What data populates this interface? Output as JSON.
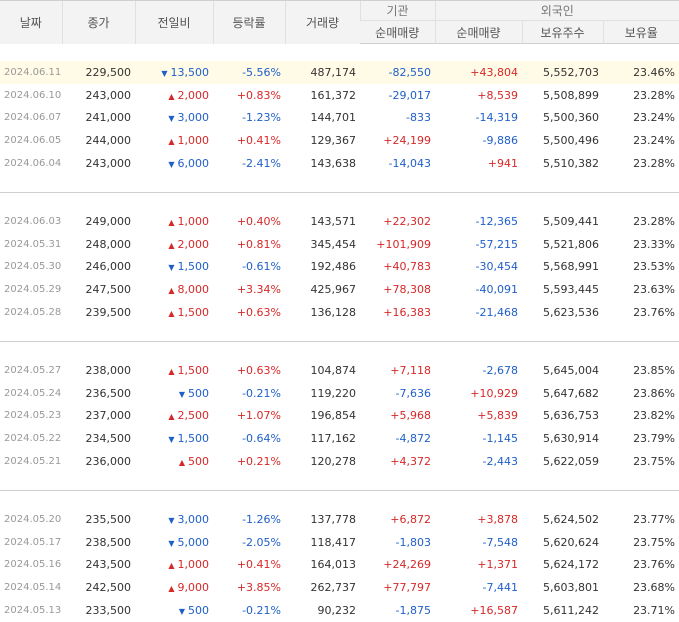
{
  "headers": {
    "date": "날짜",
    "close": "종가",
    "diff": "전일비",
    "rate": "등락률",
    "volume": "거래량",
    "institution": "기관",
    "foreign": "외국인",
    "inst_net": "순매매량",
    "foreign_net": "순매매량",
    "foreign_holdings": "보유주수",
    "foreign_ratio": "보유율"
  },
  "colors": {
    "up": "#d62828",
    "down": "#1f5fc9",
    "highlight": "#fffbe6"
  },
  "groups": [
    [
      {
        "date": "2024.06.11",
        "close": "229,500",
        "dir": "down",
        "diff": "13,500",
        "rate": "-5.56%",
        "volume": "487,174",
        "inst": "-82,550",
        "fnet": "+43,804",
        "fhold": "5,552,703",
        "fratio": "23.46%"
      },
      {
        "date": "2024.06.10",
        "close": "243,000",
        "dir": "up",
        "diff": "2,000",
        "rate": "+0.83%",
        "volume": "161,372",
        "inst": "-29,017",
        "fnet": "+8,539",
        "fhold": "5,508,899",
        "fratio": "23.28%"
      },
      {
        "date": "2024.06.07",
        "close": "241,000",
        "dir": "down",
        "diff": "3,000",
        "rate": "-1.23%",
        "volume": "144,701",
        "inst": "-833",
        "fnet": "-14,319",
        "fhold": "5,500,360",
        "fratio": "23.24%"
      },
      {
        "date": "2024.06.05",
        "close": "244,000",
        "dir": "up",
        "diff": "1,000",
        "rate": "+0.41%",
        "volume": "129,367",
        "inst": "+24,199",
        "fnet": "-9,886",
        "fhold": "5,500,496",
        "fratio": "23.24%"
      },
      {
        "date": "2024.06.04",
        "close": "243,000",
        "dir": "down",
        "diff": "6,000",
        "rate": "-2.41%",
        "volume": "143,638",
        "inst": "-14,043",
        "fnet": "+941",
        "fhold": "5,510,382",
        "fratio": "23.28%"
      }
    ],
    [
      {
        "date": "2024.06.03",
        "close": "249,000",
        "dir": "up",
        "diff": "1,000",
        "rate": "+0.40%",
        "volume": "143,571",
        "inst": "+22,302",
        "fnet": "-12,365",
        "fhold": "5,509,441",
        "fratio": "23.28%"
      },
      {
        "date": "2024.05.31",
        "close": "248,000",
        "dir": "up",
        "diff": "2,000",
        "rate": "+0.81%",
        "volume": "345,454",
        "inst": "+101,909",
        "fnet": "-57,215",
        "fhold": "5,521,806",
        "fratio": "23.33%"
      },
      {
        "date": "2024.05.30",
        "close": "246,000",
        "dir": "down",
        "diff": "1,500",
        "rate": "-0.61%",
        "volume": "192,486",
        "inst": "+40,783",
        "fnet": "-30,454",
        "fhold": "5,568,991",
        "fratio": "23.53%"
      },
      {
        "date": "2024.05.29",
        "close": "247,500",
        "dir": "up",
        "diff": "8,000",
        "rate": "+3.34%",
        "volume": "425,967",
        "inst": "+78,308",
        "fnet": "-40,091",
        "fhold": "5,593,445",
        "fratio": "23.63%"
      },
      {
        "date": "2024.05.28",
        "close": "239,500",
        "dir": "up",
        "diff": "1,500",
        "rate": "+0.63%",
        "volume": "136,128",
        "inst": "+16,383",
        "fnet": "-21,468",
        "fhold": "5,623,536",
        "fratio": "23.76%"
      }
    ],
    [
      {
        "date": "2024.05.27",
        "close": "238,000",
        "dir": "up",
        "diff": "1,500",
        "rate": "+0.63%",
        "volume": "104,874",
        "inst": "+7,118",
        "fnet": "-2,678",
        "fhold": "5,645,004",
        "fratio": "23.85%"
      },
      {
        "date": "2024.05.24",
        "close": "236,500",
        "dir": "down",
        "diff": "500",
        "rate": "-0.21%",
        "volume": "119,220",
        "inst": "-7,636",
        "fnet": "+10,929",
        "fhold": "5,647,682",
        "fratio": "23.86%"
      },
      {
        "date": "2024.05.23",
        "close": "237,000",
        "dir": "up",
        "diff": "2,500",
        "rate": "+1.07%",
        "volume": "196,854",
        "inst": "+5,968",
        "fnet": "+5,839",
        "fhold": "5,636,753",
        "fratio": "23.82%"
      },
      {
        "date": "2024.05.22",
        "close": "234,500",
        "dir": "down",
        "diff": "1,500",
        "rate": "-0.64%",
        "volume": "117,162",
        "inst": "-4,872",
        "fnet": "-1,145",
        "fhold": "5,630,914",
        "fratio": "23.79%"
      },
      {
        "date": "2024.05.21",
        "close": "236,000",
        "dir": "up",
        "diff": "500",
        "rate": "+0.21%",
        "volume": "120,278",
        "inst": "+4,372",
        "fnet": "-2,443",
        "fhold": "5,622,059",
        "fratio": "23.75%"
      }
    ],
    [
      {
        "date": "2024.05.20",
        "close": "235,500",
        "dir": "down",
        "diff": "3,000",
        "rate": "-1.26%",
        "volume": "137,778",
        "inst": "+6,872",
        "fnet": "+3,878",
        "fhold": "5,624,502",
        "fratio": "23.77%"
      },
      {
        "date": "2024.05.17",
        "close": "238,500",
        "dir": "down",
        "diff": "5,000",
        "rate": "-2.05%",
        "volume": "118,417",
        "inst": "-1,803",
        "fnet": "-7,548",
        "fhold": "5,620,624",
        "fratio": "23.75%"
      },
      {
        "date": "2024.05.16",
        "close": "243,500",
        "dir": "up",
        "diff": "1,000",
        "rate": "+0.41%",
        "volume": "164,013",
        "inst": "+24,269",
        "fnet": "+1,371",
        "fhold": "5,624,172",
        "fratio": "23.76%"
      },
      {
        "date": "2024.05.14",
        "close": "242,500",
        "dir": "up",
        "diff": "9,000",
        "rate": "+3.85%",
        "volume": "262,737",
        "inst": "+77,797",
        "fnet": "-7,441",
        "fhold": "5,603,801",
        "fratio": "23.68%"
      },
      {
        "date": "2024.05.13",
        "close": "233,500",
        "dir": "down",
        "diff": "500",
        "rate": "-0.21%",
        "volume": "90,232",
        "inst": "-1,875",
        "fnet": "+16,587",
        "fhold": "5,611,242",
        "fratio": "23.71%"
      }
    ]
  ]
}
